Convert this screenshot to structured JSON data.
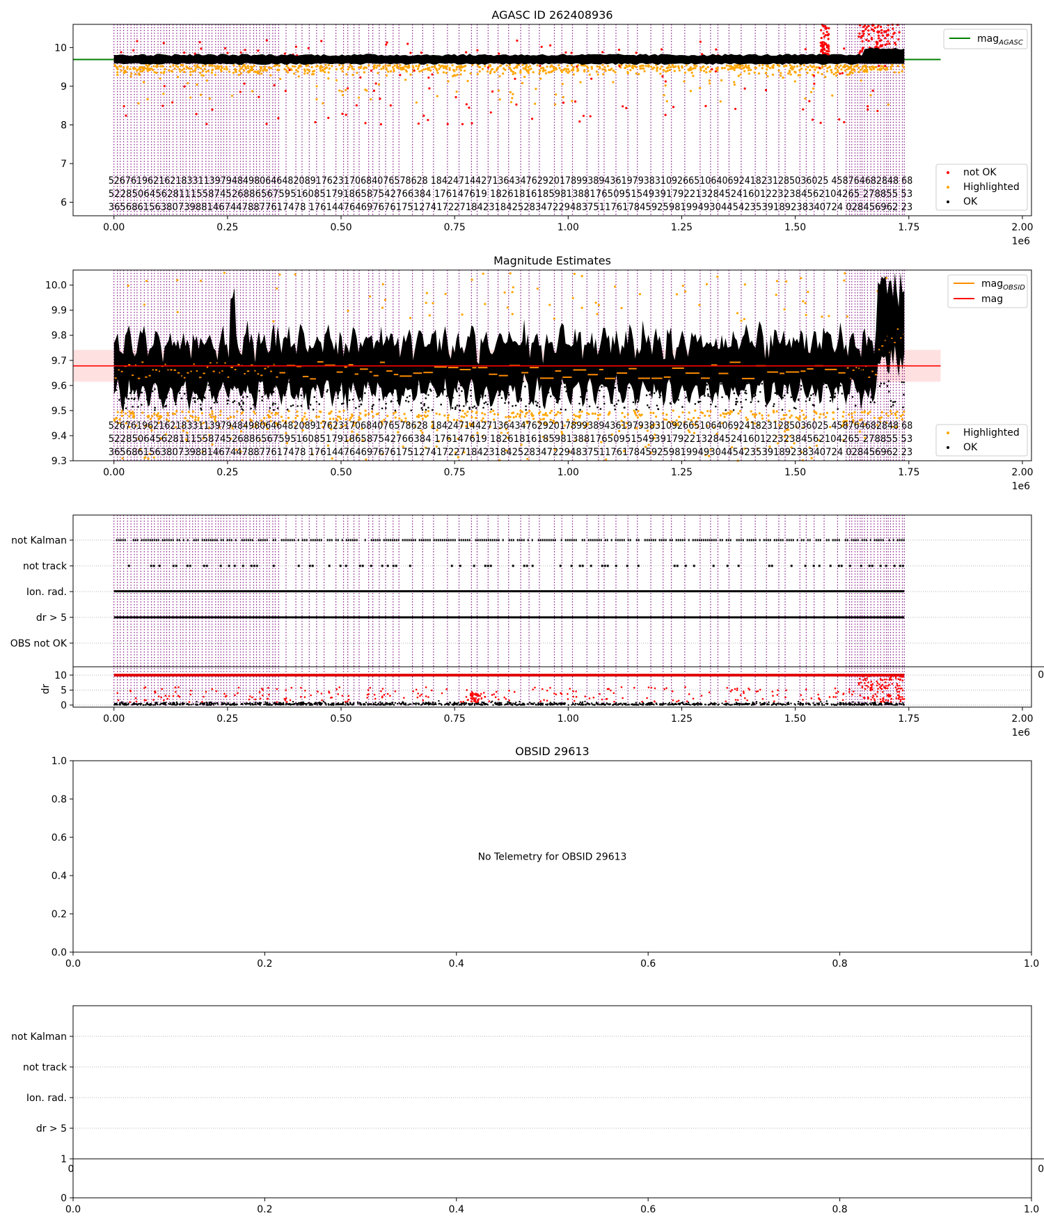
{
  "chart_data": [
    {
      "type": "scatter",
      "title": "AGASC ID 262408936",
      "xlim": [
        -90000,
        2020000
      ],
      "ylim": [
        5.65,
        10.6
      ],
      "x_offset_label": "1e6",
      "x_ticks": [
        0,
        250000,
        500000,
        750000,
        1000000,
        1250000,
        1500000,
        1750000,
        2000000
      ],
      "x_tick_labels": [
        "0.00",
        "0.25",
        "0.50",
        "0.75",
        "1.00",
        "1.25",
        "1.50",
        "1.75",
        "2.00"
      ],
      "y_ticks": [
        6,
        7,
        8,
        9,
        10
      ],
      "y_tick_labels": [
        "6",
        "7",
        "8",
        "9",
        "10"
      ],
      "reference_line": {
        "name": "mag_AGASC",
        "value": 9.69,
        "color": "#008000"
      },
      "data_extent_x": [
        0,
        1740000
      ],
      "series": [
        {
          "name": "OK",
          "color": "#000000",
          "band": [
            9.6,
            9.78
          ]
        },
        {
          "name": "Highlighted",
          "color": "#ffa500",
          "band": [
            9.15,
            9.75
          ]
        },
        {
          "name": "not OK",
          "color": "#ff0000",
          "band": [
            7.5,
            10.6
          ]
        }
      ],
      "legend": {
        "position": "lower right",
        "entries": [
          "not OK",
          "Highlighted",
          "OK"
        ]
      },
      "legend_top": {
        "position": "upper right",
        "main": "mag",
        "sub": "AGASC"
      },
      "obsid_labels": {
        "row1": "526761962162183311397948498064648208917623170684076578628 18424714427136434762920178993894361979383109266510640692418231285036025 458764682848 68",
        "row2": "5228506456281115587452688656759516085179186587542766384 176147619 182618161859813881765095154939179221328452416012232384562104265 278855 53",
        "row3": "3656861563807398814674478877617478 17614476469767617512741722718423184252834722948375117617845925981994930445423539189238340724 028456962 23"
      }
    },
    {
      "type": "scatter",
      "title": "Magnitude Estimates",
      "xlim": [
        -90000,
        2020000
      ],
      "ylim": [
        9.3,
        10.06
      ],
      "x_offset_label": "1e6",
      "x_ticks": [
        0,
        250000,
        500000,
        750000,
        1000000,
        1250000,
        1500000,
        1750000,
        2000000
      ],
      "x_tick_labels": [
        "0.00",
        "0.25",
        "0.50",
        "0.75",
        "1.00",
        "1.25",
        "1.50",
        "1.75",
        "2.00"
      ],
      "y_ticks": [
        9.3,
        9.4,
        9.5,
        9.6,
        9.7,
        9.8,
        9.9,
        10.0
      ],
      "y_tick_labels": [
        "9.3",
        "9.4",
        "9.5",
        "9.6",
        "9.7",
        "9.8",
        "9.9",
        "10.0"
      ],
      "reference_line": {
        "name": "mag",
        "value": 9.678,
        "color": "#ff0000"
      },
      "reference_band": [
        9.615,
        9.742
      ],
      "data_extent_x": [
        0,
        1740000
      ],
      "series": [
        {
          "name": "OK",
          "color": "#000000",
          "band": [
            9.5,
            9.85
          ]
        },
        {
          "name": "Highlighted",
          "color": "#ffa500",
          "band": [
            9.3,
            10.06
          ]
        },
        {
          "name": "mag_OBSID",
          "color": "#ff8c00"
        }
      ],
      "legend": {
        "position": "lower right",
        "entries": [
          "Highlighted",
          "OK"
        ]
      },
      "legend_top": {
        "position": "upper right",
        "entries": [
          {
            "main": "mag",
            "sub": "OBSID"
          },
          {
            "main": "mag",
            "sub": ""
          }
        ]
      },
      "obsid_labels": {
        "row1": "526761962162183311397948498064648208917623170684076578628 18424714427136434762920178993894361979383109266510640692418231285036025 458764682848 68",
        "row2": "5228506456281115587452688656759516085179186587542766384 176147619 182618161859813881765095154939179221328452416012232384562104265 278855 53",
        "row3": "3656861563807398814674478877617478 17614476469767617512741722718423184252834722948375117617845925981994930445423539189238340724 028456962 23"
      }
    },
    {
      "type": "scatter",
      "title": "",
      "xlim": [
        -90000,
        2020000
      ],
      "categories": [
        "not Kalman",
        "not track",
        "Ion. rad.",
        "dr > 5",
        "OBS not OK"
      ],
      "y_ticks_dr": [
        0,
        5,
        10
      ],
      "y_tick_labels_dr": [
        "0",
        "5",
        "10"
      ],
      "ylabel_dr": "dr",
      "x_offset_label": "1e6",
      "x_ticks": [
        0,
        250000,
        500000,
        750000,
        1000000,
        1250000,
        1500000,
        1750000,
        2000000
      ],
      "x_tick_labels": [
        "0.00",
        "0.25",
        "0.50",
        "0.75",
        "1.00",
        "1.25",
        "1.50",
        "1.75",
        "2.00"
      ],
      "clipped_tick_label": "0",
      "data_extent_x": [
        0,
        1740000
      ]
    },
    {
      "type": "scatter",
      "title": "OBSID 29613",
      "xlim": [
        0,
        1
      ],
      "ylim": [
        0,
        1
      ],
      "x_ticks": [
        0,
        0.2,
        0.4,
        0.6,
        0.8,
        1.0
      ],
      "x_tick_labels": [
        "0.0",
        "0.2",
        "0.4",
        "0.6",
        "0.8",
        "1.0"
      ],
      "y_ticks": [
        0,
        0.2,
        0.4,
        0.6,
        0.8,
        1.0
      ],
      "y_tick_labels": [
        "0.0",
        "0.2",
        "0.4",
        "0.6",
        "0.8",
        "1.0"
      ],
      "annotation": "No Telemetry for OBSID 29613"
    },
    {
      "type": "scatter",
      "title": "",
      "xlim": [
        0,
        1
      ],
      "categories": [
        "not Kalman",
        "not track",
        "Ion. rad.",
        "dr > 5"
      ],
      "y_ticks_lower": [
        0,
        1
      ],
      "y_tick_labels_lower": [
        "0",
        "1"
      ],
      "x_ticks": [
        0,
        0.2,
        0.4,
        0.6,
        0.8,
        1.0
      ],
      "x_tick_labels": [
        "0.0",
        "0.2",
        "0.4",
        "0.6",
        "0.8",
        "1.0"
      ],
      "clipped_tick_label_left": "0",
      "clipped_tick_label_right": "0"
    }
  ]
}
